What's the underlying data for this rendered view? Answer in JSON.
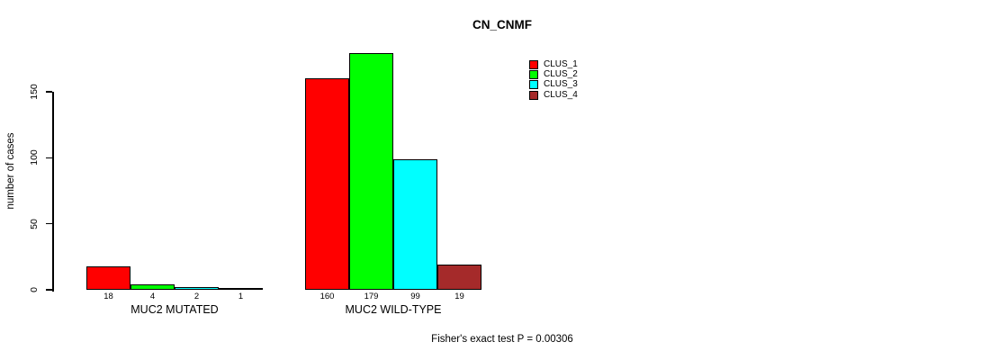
{
  "chart_data": {
    "type": "bar",
    "title": "CN_CNMF",
    "ylabel": "number of cases",
    "xlabel": "",
    "yticks": [
      0,
      50,
      100,
      150
    ],
    "ylim": [
      0,
      188
    ],
    "grid": false,
    "legend_position": "top-right",
    "categories": [
      "MUC2 MUTATED",
      "MUC2 WILD-TYPE"
    ],
    "series": [
      {
        "name": "CLUS_1",
        "color": "#ff0000",
        "values": [
          18,
          160
        ]
      },
      {
        "name": "CLUS_2",
        "color": "#00ff00",
        "values": [
          4,
          179
        ]
      },
      {
        "name": "CLUS_3",
        "color": "#00ffff",
        "values": [
          2,
          99
        ]
      },
      {
        "name": "CLUS_4",
        "color": "#a52a2a",
        "values": [
          1,
          19
        ]
      }
    ],
    "bar_value_labels": [
      [
        "18",
        "4",
        "2",
        "1"
      ],
      [
        "160",
        "179",
        "99",
        "19"
      ]
    ],
    "annotation": "Fisher's exact test P = 0.00306",
    "axis_color": "#000000",
    "text_color": "#000000",
    "background_color": "#ffffff"
  }
}
